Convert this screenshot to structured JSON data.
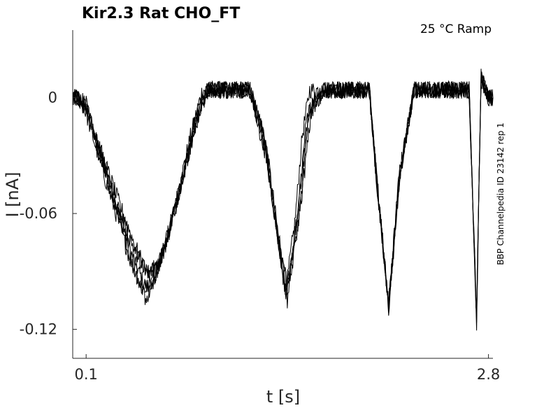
{
  "chart_data": {
    "type": "line",
    "title": "Kir2.3  Rat  CHO_FT",
    "condition": "25 °C  Ramp",
    "side_label": "BBP Channelpedia ID 23142 rep 1",
    "xlabel": "t [s]",
    "ylabel": "I [nA]",
    "x_ticks": [
      0.1,
      2.8
    ],
    "x_tick_labels": [
      "0.1",
      "2.8"
    ],
    "y_ticks": [
      0,
      -0.06,
      -0.12
    ],
    "y_tick_labels": [
      "0",
      "-0.06",
      "-0.12"
    ],
    "xlim": [
      0.01,
      2.83
    ],
    "ylim": [
      -0.135,
      0.035
    ],
    "grid": false,
    "legend": "none",
    "trace_color": "#000000",
    "series": [
      {
        "x": [
          0.01,
          0.05,
          0.1,
          0.2,
          0.3,
          0.4,
          0.48,
          0.52,
          0.6,
          0.7,
          0.8,
          0.88,
          0.95,
          1.05,
          1.2,
          1.3,
          1.37,
          1.44,
          1.5,
          1.55,
          1.6,
          1.7,
          1.85,
          2.0,
          2.05,
          2.13,
          2.2,
          2.3,
          2.45,
          2.6,
          2.67,
          2.72,
          2.75,
          2.8,
          2.83
        ],
        "y": [
          0,
          0,
          -0.005,
          -0.03,
          -0.055,
          -0.08,
          -0.095,
          -0.1,
          -0.085,
          -0.055,
          -0.02,
          0.004,
          0.004,
          0.004,
          0.004,
          -0.02,
          -0.06,
          -0.1,
          -0.065,
          -0.02,
          0.004,
          0.004,
          0.004,
          0.004,
          -0.04,
          -0.108,
          -0.04,
          0.004,
          0.004,
          0.004,
          0.004,
          -0.115,
          0.01,
          0,
          0
        ]
      },
      {
        "x": [
          0.01,
          0.05,
          0.1,
          0.2,
          0.3,
          0.4,
          0.48,
          0.55,
          0.62,
          0.72,
          0.82,
          0.9,
          1.05,
          1.2,
          1.3,
          1.38,
          1.44,
          1.52,
          1.58,
          1.7,
          1.85,
          2.0,
          2.05,
          2.13,
          2.2,
          2.3,
          2.45,
          2.6,
          2.67,
          2.72,
          2.75,
          2.8,
          2.83
        ],
        "y": [
          0,
          0,
          -0.008,
          -0.035,
          -0.06,
          -0.085,
          -0.1,
          -0.095,
          -0.08,
          -0.05,
          -0.015,
          0.004,
          0.004,
          0.004,
          -0.025,
          -0.07,
          -0.103,
          -0.06,
          -0.01,
          0.004,
          0.004,
          0.004,
          -0.045,
          -0.11,
          -0.045,
          0.004,
          0.004,
          0.004,
          0.004,
          -0.118,
          0.012,
          0,
          0
        ]
      },
      {
        "x": [
          0.01,
          0.05,
          0.1,
          0.2,
          0.3,
          0.42,
          0.5,
          0.58,
          0.65,
          0.75,
          0.85,
          0.92,
          1.05,
          1.2,
          1.31,
          1.39,
          1.45,
          1.52,
          1.6,
          1.7,
          1.85,
          2.0,
          2.05,
          2.13,
          2.2,
          2.3,
          2.45,
          2.6,
          2.67,
          2.72,
          2.75,
          2.8,
          2.83
        ],
        "y": [
          0,
          0,
          -0.003,
          -0.028,
          -0.05,
          -0.075,
          -0.09,
          -0.088,
          -0.07,
          -0.04,
          -0.01,
          0.004,
          0.004,
          0.004,
          -0.03,
          -0.075,
          -0.105,
          -0.058,
          -0.005,
          0.004,
          0.004,
          0.004,
          -0.042,
          -0.109,
          -0.043,
          0.004,
          0.004,
          0.004,
          0.004,
          -0.116,
          0.011,
          0,
          0
        ]
      },
      {
        "x": [
          0.01,
          0.05,
          0.1,
          0.2,
          0.32,
          0.43,
          0.52,
          0.6,
          0.68,
          0.78,
          0.86,
          0.93,
          1.05,
          1.2,
          1.32,
          1.4,
          1.46,
          1.54,
          1.62,
          1.7,
          1.85,
          2.0,
          2.05,
          2.13,
          2.2,
          2.3,
          2.45,
          2.6,
          2.67,
          2.72,
          2.75,
          2.8,
          2.83
        ],
        "y": [
          0,
          0,
          -0.006,
          -0.032,
          -0.058,
          -0.08,
          -0.092,
          -0.082,
          -0.062,
          -0.032,
          -0.006,
          0.004,
          0.004,
          0.004,
          -0.035,
          -0.08,
          -0.1,
          -0.055,
          -0.002,
          0.004,
          0.004,
          0.004,
          -0.044,
          -0.107,
          -0.041,
          0.004,
          0.004,
          0.004,
          0.004,
          -0.113,
          0.009,
          0,
          0
        ]
      },
      {
        "x": [
          0.01,
          0.05,
          0.1,
          0.2,
          0.3,
          0.4,
          0.5,
          0.56,
          0.64,
          0.74,
          0.84,
          0.91,
          1.05,
          1.2,
          1.3,
          1.38,
          1.45,
          1.53,
          1.59,
          1.7,
          1.85,
          2.0,
          2.05,
          2.13,
          2.2,
          2.3,
          2.45,
          2.6,
          2.67,
          2.72,
          2.75,
          2.8,
          2.83
        ],
        "y": [
          0,
          0,
          -0.004,
          -0.03,
          -0.057,
          -0.083,
          -0.105,
          -0.092,
          -0.075,
          -0.045,
          -0.012,
          0.004,
          0.004,
          0.004,
          -0.022,
          -0.068,
          -0.098,
          -0.062,
          -0.008,
          0.004,
          0.004,
          0.004,
          -0.043,
          -0.108,
          -0.044,
          0.004,
          0.004,
          0.004,
          0.004,
          -0.114,
          0.01,
          0,
          0
        ]
      }
    ]
  }
}
